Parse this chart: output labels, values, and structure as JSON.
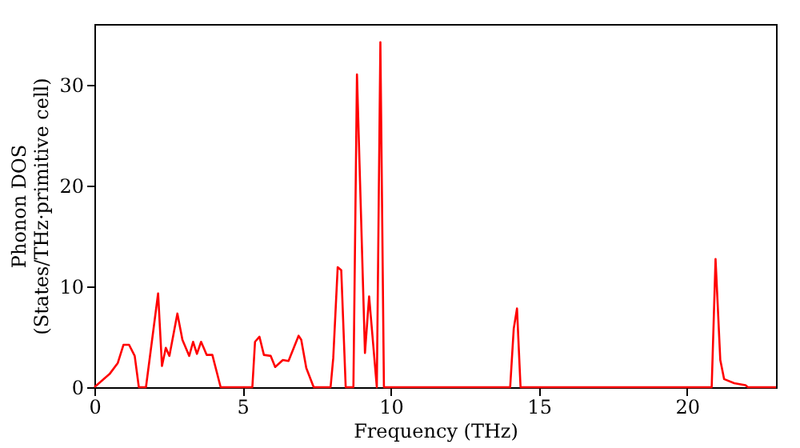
{
  "chart_data": {
    "type": "line",
    "xlabel": "Frequency (THz)",
    "ylabel": "Phonon DOS\n(States/THz·primitive cell)",
    "xlim": [
      0,
      23
    ],
    "ylim": [
      0,
      36
    ],
    "xticks": [
      0,
      5,
      10,
      15,
      20
    ],
    "yticks": [
      0,
      10,
      20,
      30
    ],
    "grid": false,
    "marker": "none",
    "line_style": "solid",
    "series": [
      {
        "color": "#ff0000",
        "x": [
          0,
          0.51,
          0.79,
          0.98,
          1.17,
          1.36,
          1.5,
          1.74,
          2.15,
          2.28,
          2.41,
          2.53,
          2.8,
          2.97,
          3.2,
          3.33,
          3.46,
          3.6,
          3.79,
          3.98,
          4.26,
          5.33,
          5.42,
          5.57,
          5.72,
          5.95,
          6.1,
          6.36,
          6.55,
          6.89,
          6.98,
          7.15,
          7.4,
          7.97,
          8.06,
          8.21,
          8.33,
          8.48,
          8.74,
          8.86,
          9.13,
          9.27,
          9.53,
          9.65,
          9.77,
          14.03,
          14.15,
          14.26,
          14.38,
          20.83,
          20.96,
          21.12,
          21.25,
          21.59,
          21.97,
          22.05,
          23
        ],
        "values": [
          0,
          1.3,
          2.4,
          4.2,
          4.2,
          3.1,
          0,
          0,
          9.3,
          2.1,
          3.9,
          3.1,
          7.3,
          4.7,
          3.1,
          4.5,
          3.3,
          4.5,
          3.2,
          3.2,
          0,
          0,
          4.5,
          5.0,
          3.2,
          3.1,
          2.0,
          2.7,
          2.6,
          5.1,
          4.7,
          1.9,
          0,
          0,
          2.9,
          11.9,
          11.6,
          0,
          0,
          31.0,
          3.4,
          9.0,
          0,
          34.2,
          0,
          0,
          5.8,
          7.8,
          0,
          0,
          12.7,
          2.7,
          0.8,
          0.4,
          0.2,
          0,
          0
        ]
      }
    ]
  }
}
